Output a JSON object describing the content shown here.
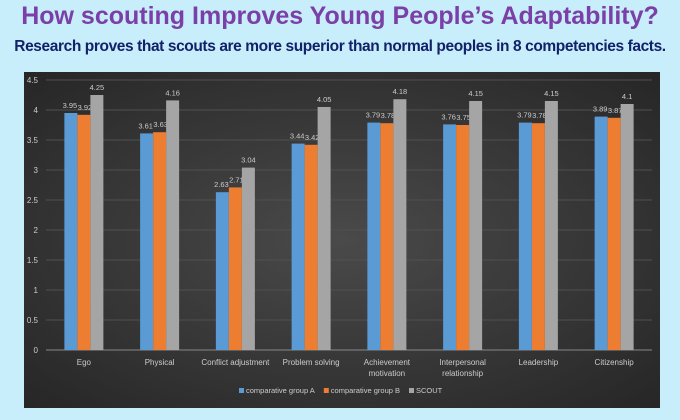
{
  "title": "How scouting Improves Young People’s Adaptability?",
  "subtitle": "Research proves that scouts are more superior than normal peoples in 8 competencies facts.",
  "chart_data": {
    "type": "bar",
    "categories": [
      "Ego",
      "Physical",
      "Conflict adjustment",
      "Problem solving",
      "Achievement motivation",
      "Interpersonal relationship",
      "Leadership",
      "Citizenship"
    ],
    "series": [
      {
        "name": "comparative group A",
        "color": "#5b9bd5",
        "values": [
          3.95,
          3.61,
          2.63,
          3.44,
          3.79,
          3.76,
          3.79,
          3.89
        ]
      },
      {
        "name": "comparative group B",
        "color": "#ed7d31",
        "values": [
          3.92,
          3.63,
          2.71,
          3.42,
          3.78,
          3.75,
          3.78,
          3.87
        ]
      },
      {
        "name": "SCOUT",
        "color": "#a5a5a5",
        "values": [
          4.25,
          4.16,
          3.04,
          4.05,
          4.18,
          4.15,
          4.15,
          4.1
        ]
      }
    ],
    "yticks": [
      "0",
      "0.5",
      "1",
      "1.5",
      "2",
      "2.5",
      "3",
      "3.5",
      "4",
      "4.5"
    ],
    "ylim": [
      0,
      4.5
    ],
    "grid": true,
    "legend": "bottom"
  }
}
